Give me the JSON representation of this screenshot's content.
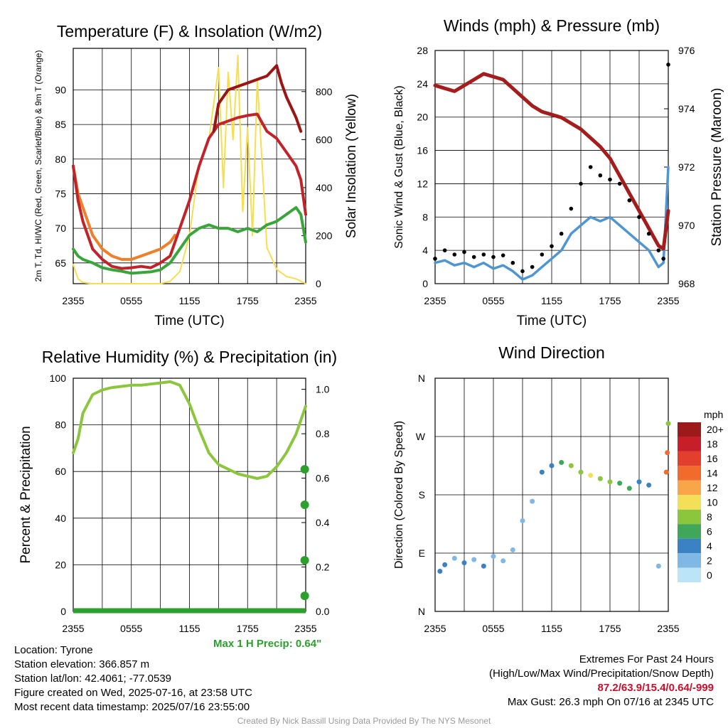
{
  "footer_left": {
    "location": "Location: Tyrone",
    "elevation": "Station elevation: 366.857 m",
    "latlon": "Station lat/lon: 42.4061; -77.0539",
    "created": "Figure created on Wed, 2025-07-16, at 23:58 UTC",
    "recent": "Most recent data timestamp: 2025/07/16 23:55:00"
  },
  "footer_right": {
    "extremes_title": "Extremes For Past 24 Hours",
    "extremes_sub": "(High/Low/Max Wind/Precipitation/Snow Depth)",
    "extremes_values": "87.2/63.9/15.4/0.64/-999",
    "max_gust": "Max Gust: 26.3 mph On 07/16 at 2345 UTC"
  },
  "credit": "Created By Nick Bassill Using Data Provided By The NYS Mesonet",
  "colors": {
    "temp": "#c0242a",
    "dewpoint": "#3aa63a",
    "hiwc": "#9c1414",
    "temp9m": "#f07f2a",
    "insolation": "#f7de50",
    "rh": "#8cc63f",
    "precip": "#2ca02c",
    "wind": "#4f96d0",
    "gust": "#000000",
    "pressure": "#a51c1c"
  },
  "chart_data": [
    {
      "type": "line",
      "title": "Temperature (F) & Insolation (W/m2)",
      "xlabel": "Time (UTC)",
      "ylabel": "2m T, Td, HI/WC (Red, Green, Scarlet/Blue) & 9m T (Orange)",
      "y2label": "Solar Insolation (Yellow)",
      "x_ticks": [
        "2355",
        "0555",
        "1155",
        "1755",
        "2355"
      ],
      "y_ticks": [
        65,
        70,
        75,
        80,
        85,
        90
      ],
      "y2_ticks": [
        0,
        200,
        400,
        600,
        800
      ],
      "ylim": [
        62,
        96
      ],
      "y2lim": [
        0,
        980
      ],
      "xlim": [
        0,
        24
      ],
      "series": [
        {
          "key": "temp",
          "x": [
            0,
            0.5,
            1,
            2,
            3,
            4,
            5,
            6,
            7,
            8,
            9,
            10,
            11,
            12,
            13,
            14,
            15,
            16,
            17,
            18,
            19,
            20,
            21,
            22,
            23,
            23.5,
            24
          ],
          "values": [
            79,
            74,
            71,
            67,
            65.5,
            64.5,
            64.2,
            64.3,
            64.5,
            64.3,
            65,
            66,
            70,
            74,
            79,
            83,
            85,
            85.5,
            86,
            86.3,
            86.5,
            84,
            83,
            81,
            79,
            77,
            72
          ]
        },
        {
          "key": "temp9m",
          "x": [
            0,
            0.5,
            1,
            2,
            3,
            4,
            5,
            6,
            7,
            8,
            9,
            10,
            10.5
          ],
          "values": [
            79,
            75,
            73,
            69,
            67,
            66,
            65.5,
            65.5,
            66,
            66.5,
            67,
            68,
            69
          ]
        },
        {
          "key": "hiwc",
          "x": [
            14.5,
            15,
            16,
            17,
            18,
            19,
            20,
            21,
            21.5,
            22,
            23,
            23.5
          ],
          "values": [
            84,
            88,
            90,
            90.5,
            91,
            91.5,
            92,
            93.5,
            91,
            89,
            86,
            84
          ]
        },
        {
          "key": "dewpoint",
          "x": [
            0,
            0.5,
            1,
            2,
            3,
            4,
            5,
            6,
            7,
            8,
            9,
            10,
            11,
            12,
            13,
            14,
            15,
            16,
            17,
            18,
            19,
            20,
            21,
            22,
            23,
            23.5,
            24
          ],
          "values": [
            67,
            66,
            65.5,
            65,
            64.3,
            64,
            63.8,
            63.5,
            63.6,
            63.7,
            64,
            65,
            67,
            69,
            70,
            70.5,
            70,
            70,
            69.5,
            70,
            69.5,
            70.5,
            71,
            72,
            73,
            72,
            68
          ]
        },
        {
          "key": "insolation",
          "x": [
            0,
            0.5,
            1,
            2,
            3,
            4,
            5,
            6,
            7,
            8,
            9,
            10,
            11,
            12,
            13,
            14,
            14.5,
            15,
            15.5,
            16,
            16.5,
            17,
            17.5,
            18,
            18.5,
            19,
            19.5,
            20,
            21,
            22,
            23,
            24
          ],
          "values": [
            80,
            20,
            5,
            0,
            0,
            0,
            0,
            0,
            0,
            0,
            0,
            10,
            50,
            200,
            500,
            600,
            750,
            900,
            400,
            880,
            600,
            950,
            300,
            650,
            200,
            850,
            500,
            150,
            60,
            30,
            20,
            0
          ]
        }
      ]
    },
    {
      "type": "line",
      "title": "Winds (mph) & Pressure (mb)",
      "xlabel": "Time (UTC)",
      "ylabel": "Sonic Wind & Gust (Blue, Black)",
      "y2label": "Station Pressure (Maroon)",
      "x_ticks": [
        "2355",
        "0555",
        "1155",
        "1755",
        "2355"
      ],
      "y_ticks": [
        0,
        4,
        8,
        12,
        16,
        20,
        24,
        28
      ],
      "y2_ticks": [
        968,
        970,
        972,
        974,
        976
      ],
      "ylim": [
        0,
        28
      ],
      "y2lim": [
        968,
        976
      ],
      "xlim": [
        0,
        24
      ],
      "series": [
        {
          "key": "pressure",
          "x": [
            0,
            1,
            2,
            3,
            4,
            5,
            6,
            7,
            8,
            9,
            10,
            11,
            12,
            13,
            14,
            15,
            16,
            17,
            18,
            19,
            20,
            21,
            22,
            23,
            23.5,
            24
          ],
          "values": [
            974.8,
            974.7,
            974.6,
            974.8,
            975,
            975.2,
            975.1,
            975,
            974.7,
            974.4,
            974.1,
            973.9,
            973.8,
            973.7,
            973.5,
            973.3,
            973,
            972.7,
            972.3,
            971.7,
            971.1,
            970.5,
            969.9,
            969.3,
            969.2,
            970.5
          ]
        },
        {
          "key": "wind",
          "x": [
            0,
            1,
            2,
            3,
            4,
            5,
            6,
            7,
            8,
            9,
            10,
            11,
            12,
            13,
            14,
            15,
            16,
            17,
            18,
            19,
            20,
            21,
            22,
            23,
            23.5,
            24
          ],
          "values": [
            2.5,
            2.8,
            2.2,
            2.5,
            2,
            2.5,
            1.8,
            2.2,
            1.5,
            0.5,
            1,
            2,
            3,
            4,
            6,
            7,
            8,
            7.5,
            8,
            7,
            6,
            5,
            4,
            2,
            2.5,
            14
          ]
        },
        {
          "key": "gust",
          "x": [
            0,
            1,
            2,
            3,
            4,
            5,
            6,
            7,
            8,
            9,
            10,
            11,
            12,
            13,
            14,
            15,
            16,
            17,
            18,
            19,
            20,
            21,
            22,
            23,
            23.5,
            24
          ],
          "values": [
            3,
            4,
            3.5,
            3.8,
            3.2,
            3.5,
            3.2,
            3.4,
            2.5,
            1.5,
            2,
            3.5,
            4.5,
            6,
            9,
            12,
            14,
            13,
            12.5,
            12,
            10,
            8,
            6,
            4,
            3,
            26.3
          ]
        }
      ]
    },
    {
      "type": "line",
      "title": "Relative Humidity (%) & Precipitation (in)",
      "ylabel": "Percent & Precipitation",
      "x_ticks": [
        "2355",
        "0555",
        "1155",
        "1755",
        "2355"
      ],
      "y_ticks": [
        0,
        20,
        40,
        60,
        80,
        100
      ],
      "y2_ticks": [
        "0.0",
        "0.2",
        "0.4",
        "0.6",
        "0.8",
        "1.0"
      ],
      "ylim": [
        0,
        100
      ],
      "y2lim": [
        0,
        1.05
      ],
      "xlim": [
        0,
        24
      ],
      "series": [
        {
          "key": "rh",
          "x": [
            0,
            0.5,
            1,
            2,
            3,
            4,
            5,
            6,
            7,
            8,
            9,
            10,
            11,
            12,
            13,
            14,
            15,
            16,
            17,
            18,
            19,
            20,
            21,
            22,
            23,
            23.5,
            24
          ],
          "values": [
            68,
            74,
            85,
            93,
            95,
            96,
            96.5,
            97,
            97,
            97.5,
            98,
            98.5,
            97,
            89,
            78,
            68,
            63,
            61,
            59,
            58,
            57,
            58,
            62,
            68,
            76,
            82,
            88
          ]
        },
        {
          "key": "precip",
          "x": [
            23.9,
            23.9,
            23.9,
            23.9
          ],
          "values": [
            0.07,
            0.23,
            0.48,
            0.64
          ]
        }
      ],
      "annotation": "Max 1 H Precip: 0.64\""
    },
    {
      "type": "scatter",
      "title": "Wind Direction",
      "ylabel": "Direction (Colored By Speed)",
      "x_ticks": [
        "2355",
        "0555",
        "1155",
        "1755",
        "2355"
      ],
      "y_ticks": [
        "N",
        "E",
        "S",
        "W",
        "N"
      ],
      "ylim": [
        0,
        360
      ],
      "xlim": [
        0,
        24
      ],
      "colorbar_unit": "mph",
      "colorbar_labels": [
        "20+",
        "18",
        "16",
        "14",
        "12",
        "10",
        "8",
        "6",
        "4",
        "2",
        "0"
      ],
      "colorbar_colors": [
        "#9c1a1a",
        "#c81e2a",
        "#e33f2e",
        "#f06b2c",
        "#f9a54a",
        "#f4df58",
        "#8cc63f",
        "#3fa65a",
        "#3a82c4",
        "#7fb7e5",
        "#bde3f7"
      ],
      "points_summary": [
        {
          "x": 0.5,
          "dir": 62,
          "speed": 3
        },
        {
          "x": 1,
          "dir": 72,
          "speed": 3
        },
        {
          "x": 2,
          "dir": 82,
          "speed": 2
        },
        {
          "x": 3,
          "dir": 75,
          "speed": 3
        },
        {
          "x": 4,
          "dir": 80,
          "speed": 2
        },
        {
          "x": 5,
          "dir": 70,
          "speed": 3
        },
        {
          "x": 6,
          "dir": 85,
          "speed": 2
        },
        {
          "x": 7,
          "dir": 78,
          "speed": 2
        },
        {
          "x": 8,
          "dir": 95,
          "speed": 1
        },
        {
          "x": 9,
          "dir": 140,
          "speed": 1
        },
        {
          "x": 10,
          "dir": 170,
          "speed": 1
        },
        {
          "x": 11,
          "dir": 215,
          "speed": 3
        },
        {
          "x": 12,
          "dir": 225,
          "speed": 4
        },
        {
          "x": 13,
          "dir": 230,
          "speed": 5
        },
        {
          "x": 14,
          "dir": 225,
          "speed": 7
        },
        {
          "x": 15,
          "dir": 215,
          "speed": 8
        },
        {
          "x": 16,
          "dir": 210,
          "speed": 9
        },
        {
          "x": 17,
          "dir": 205,
          "speed": 8
        },
        {
          "x": 18,
          "dir": 200,
          "speed": 7
        },
        {
          "x": 19,
          "dir": 198,
          "speed": 6
        },
        {
          "x": 20,
          "dir": 190,
          "speed": 5
        },
        {
          "x": 21,
          "dir": 200,
          "speed": 4
        },
        {
          "x": 22,
          "dir": 195,
          "speed": 3
        },
        {
          "x": 23,
          "dir": 70,
          "speed": 1
        },
        {
          "x": 23.8,
          "dir": 215,
          "speed": 14
        },
        {
          "x": 23.9,
          "dir": 245,
          "speed": 14
        },
        {
          "x": 24,
          "dir": 290,
          "speed": 7
        }
      ]
    }
  ]
}
